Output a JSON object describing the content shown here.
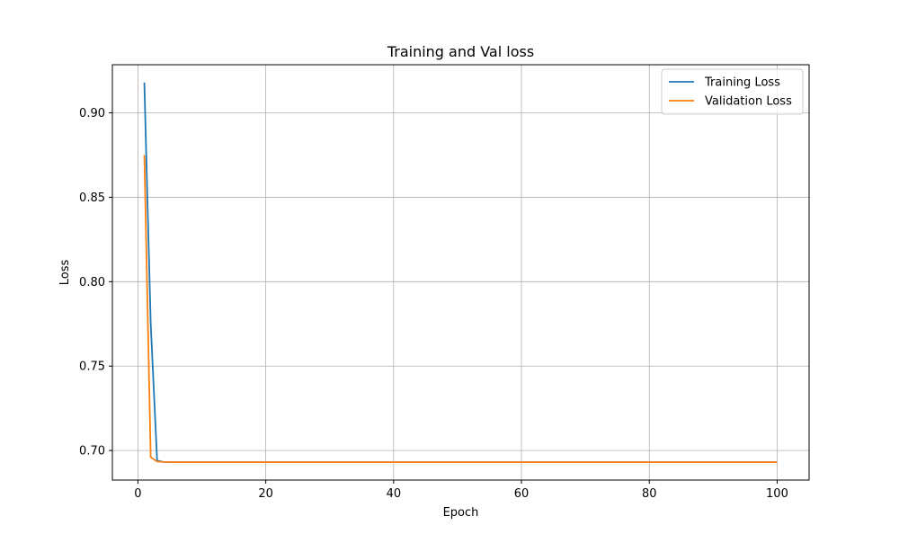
{
  "chart_data": {
    "type": "line",
    "title": "Training and Val loss",
    "xlabel": "Epoch",
    "ylabel": "Loss",
    "xlim": [
      -4,
      105
    ],
    "ylim": [
      0.6825,
      0.9285
    ],
    "xticks": [
      0,
      20,
      40,
      60,
      80,
      100
    ],
    "yticks": [
      0.7,
      0.75,
      0.8,
      0.85,
      0.9
    ],
    "ytick_labels": [
      "0.70",
      "0.75",
      "0.80",
      "0.85",
      "0.90"
    ],
    "grid": true,
    "legend": "top-right",
    "series": [
      {
        "name": "Training Loss",
        "color": "#1f77b4",
        "x": [
          1,
          2,
          3,
          4,
          5,
          100
        ],
        "y": [
          0.918,
          0.775,
          0.694,
          0.6932,
          0.6931,
          0.6931
        ]
      },
      {
        "name": "Validation Loss",
        "color": "#ff7f0e",
        "x": [
          1,
          2,
          3,
          4,
          5,
          100
        ],
        "y": [
          0.875,
          0.696,
          0.6935,
          0.6932,
          0.6931,
          0.6931
        ]
      }
    ]
  }
}
